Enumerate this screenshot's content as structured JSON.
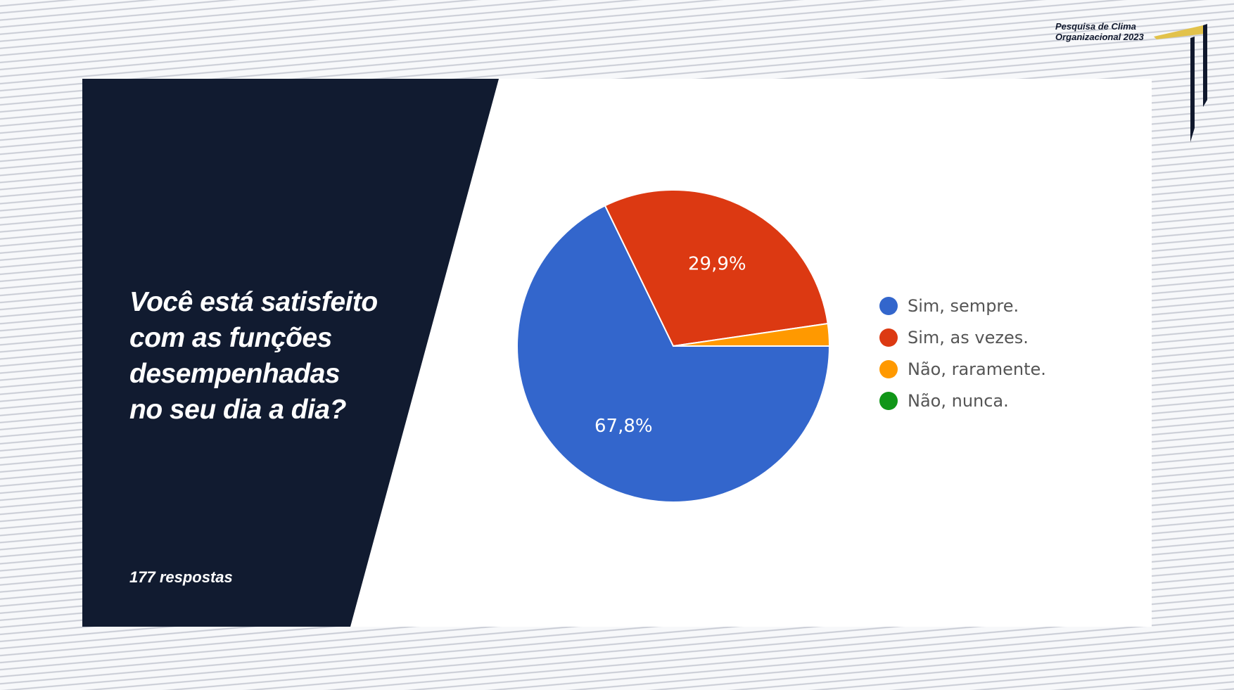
{
  "brand": {
    "line1": "Pesquisa de Clima",
    "line2": "Organizacional 2023",
    "accent_color": "#e2c24b",
    "mark_color": "#10182d"
  },
  "panel": {
    "question": "Você está satisfeito\ncom as funções\ndesempenhadas\nno seu dia a dia?",
    "responses": "177 respostas"
  },
  "chart_data": {
    "type": "pie",
    "slices": [
      {
        "label": "Sim, sempre.",
        "value": 67.8,
        "display": "67,8%",
        "color": "#3366cc"
      },
      {
        "label": "Sim, as vezes.",
        "value": 29.9,
        "display": "29,9%",
        "color": "#dc3912"
      },
      {
        "label": "Não, raramente.",
        "value": 2.3,
        "display": "",
        "color": "#ff9900"
      },
      {
        "label": "Não, nunca.",
        "value": 0,
        "display": "",
        "color": "#109618"
      }
    ],
    "legend": "right"
  }
}
